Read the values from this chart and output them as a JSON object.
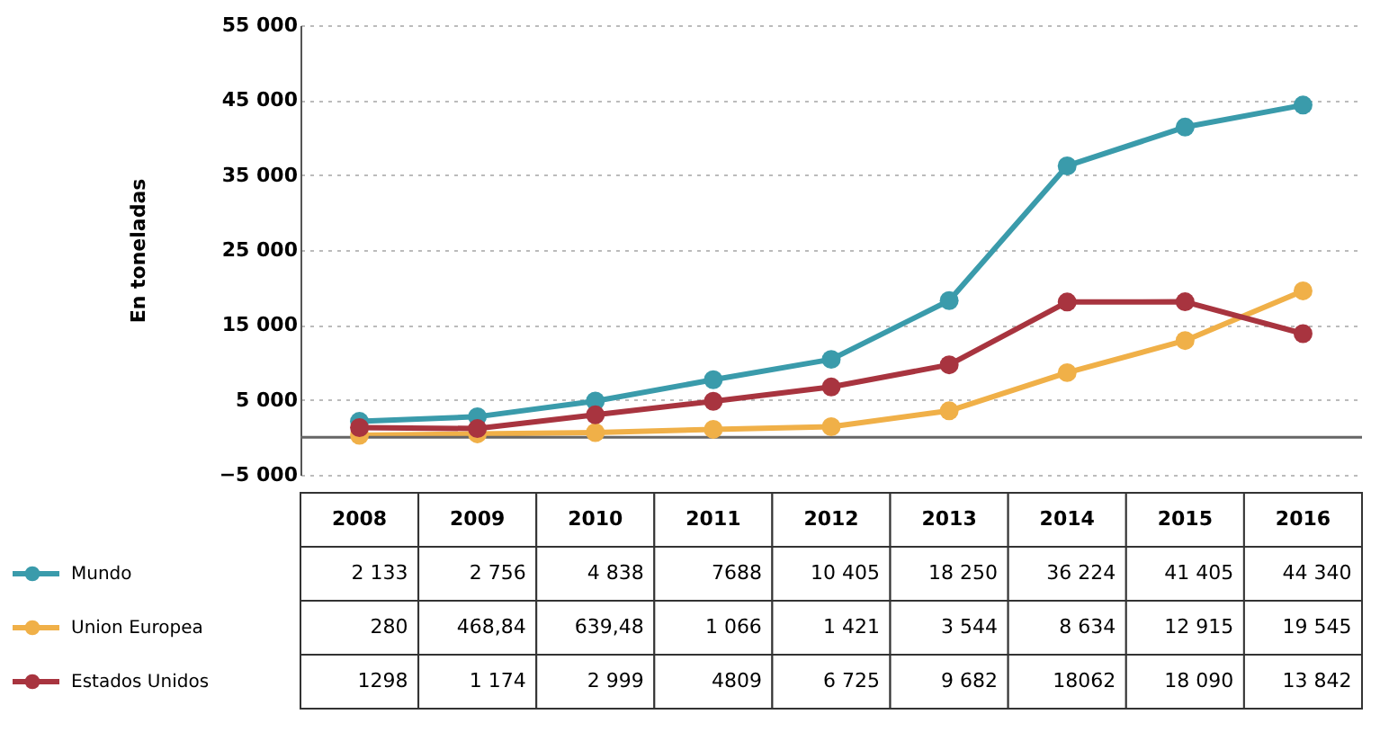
{
  "chart_data": {
    "type": "line",
    "ylabel": "En toneladas",
    "categories": [
      "2008",
      "2009",
      "2010",
      "2011",
      "2012",
      "2013",
      "2014",
      "2015",
      "2016"
    ],
    "series": [
      {
        "name": "Mundo",
        "color": "#3a9bab",
        "values": [
          2133,
          2756,
          4838,
          7688,
          10405,
          18250,
          36224,
          41405,
          44340
        ],
        "value_labels": [
          "2 133",
          "2 756",
          "4 838",
          "7688",
          "10 405",
          "18 250",
          "36 224",
          "41 405",
          "44 340"
        ]
      },
      {
        "name": "Union Europea",
        "color": "#f0b048",
        "values": [
          280,
          468.84,
          639.48,
          1066,
          1421,
          3544,
          8634,
          12915,
          19545
        ],
        "value_labels": [
          "280",
          "468,84",
          "639,48",
          "1 066",
          "1 421",
          "3 544",
          "8 634",
          "12 915",
          "19 545"
        ]
      },
      {
        "name": "Estados Unidos",
        "color": "#a8343f",
        "values": [
          1298,
          1174,
          2999,
          4809,
          6725,
          9682,
          18062,
          18090,
          13842
        ],
        "value_labels": [
          "1298",
          "1 174",
          "2 999",
          "4809",
          "6 725",
          "9 682",
          "18062",
          "18 090",
          "13 842"
        ]
      }
    ],
    "ylim": [
      -5000,
      55000
    ],
    "yticks": [
      -5000,
      5000,
      15000,
      25000,
      35000,
      45000,
      55000
    ],
    "ref_lines": [
      {
        "axis": "y",
        "value": 0,
        "label": null
      }
    ],
    "grid": "y",
    "marker": "circle",
    "line_style": "solid",
    "legend": "bottom"
  }
}
